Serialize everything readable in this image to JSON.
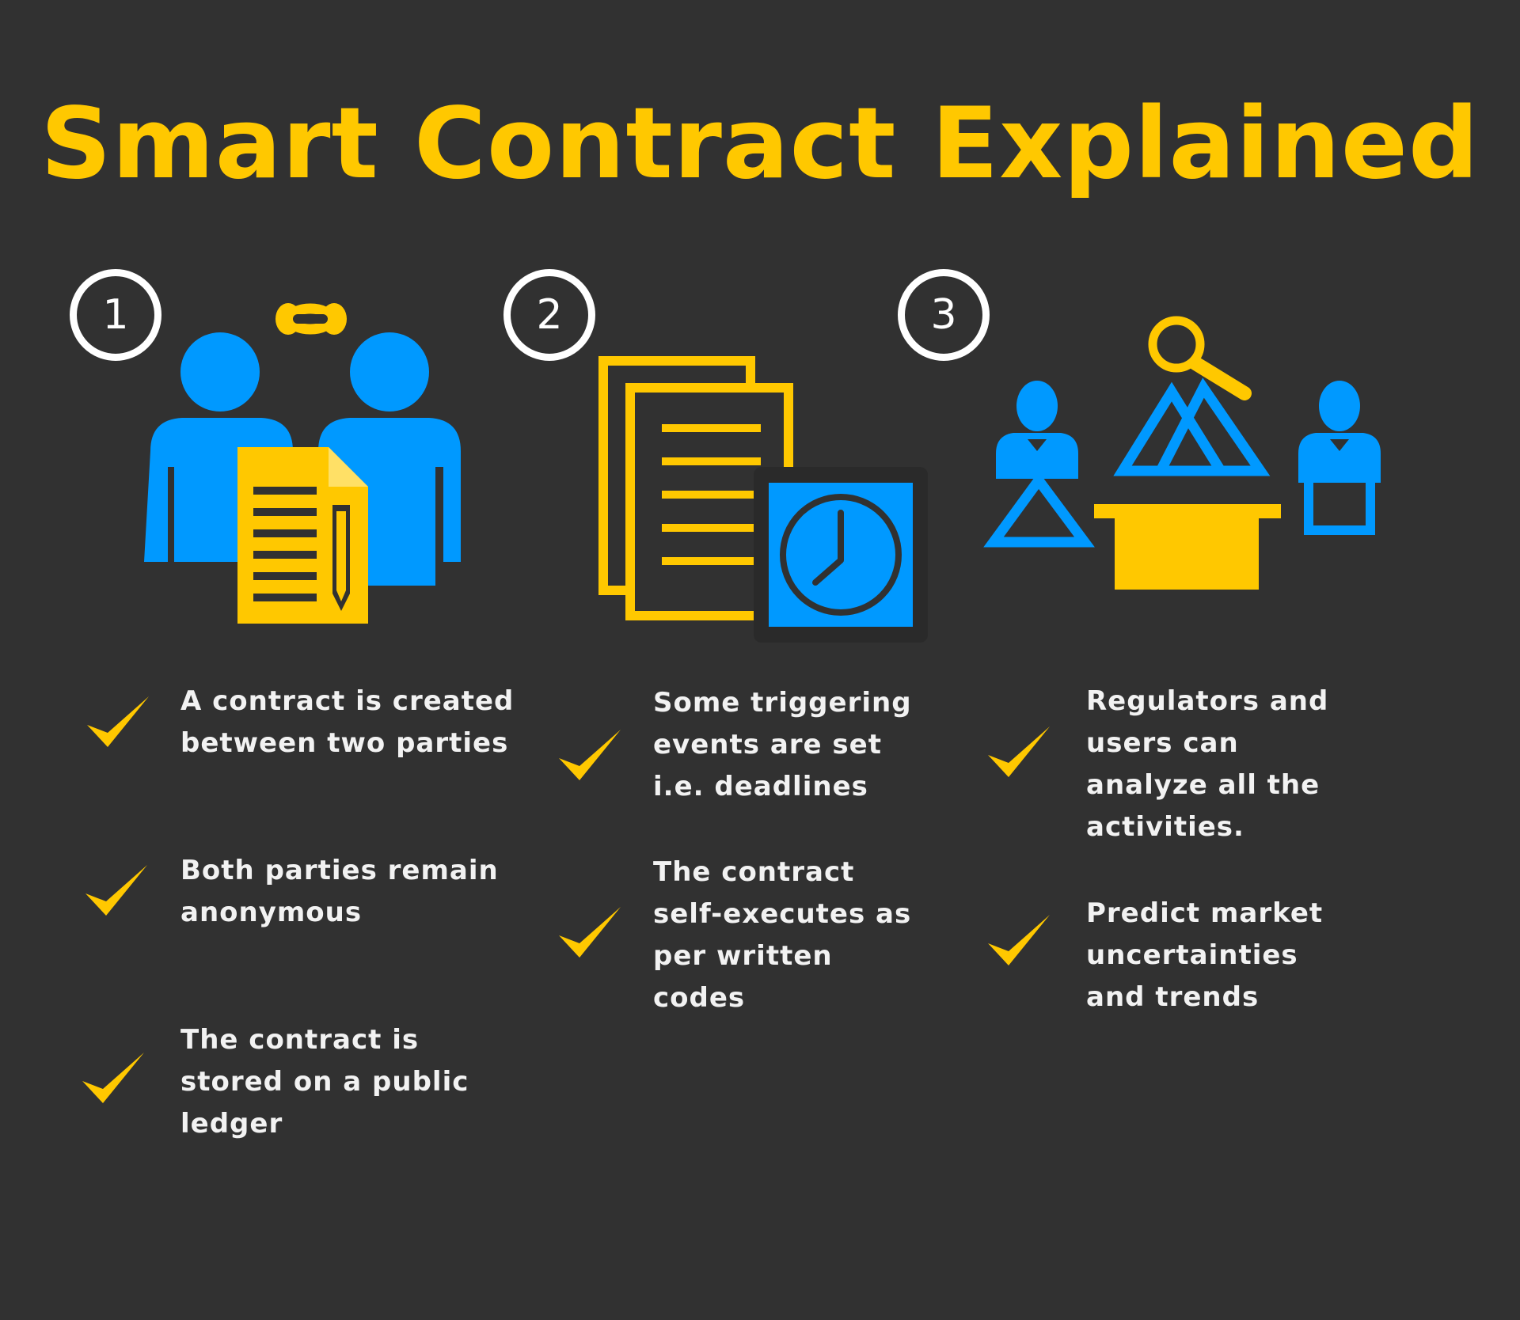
{
  "title": "Smart Contract Explained",
  "colors": {
    "background": "#313131",
    "accent_yellow": "#ffc800",
    "accent_blue": "#0099ff",
    "text": "#f2f2f2"
  },
  "steps": [
    {
      "number": "1",
      "icon": "two-people-contract-icon",
      "items": [
        "A contract is created between two parties",
        "Both parties remain anonymous",
        "The contract is stored on a public ledger"
      ]
    },
    {
      "number": "2",
      "icon": "documents-clock-icon",
      "items": [
        "Some triggering events are set i.e. deadlines",
        "The contract self-executes as per written codes"
      ]
    },
    {
      "number": "3",
      "icon": "regulators-analysis-icon",
      "items": [
        "Regulators and users can analyze all the activities.",
        "Predict market uncertainties and trends"
      ]
    }
  ]
}
